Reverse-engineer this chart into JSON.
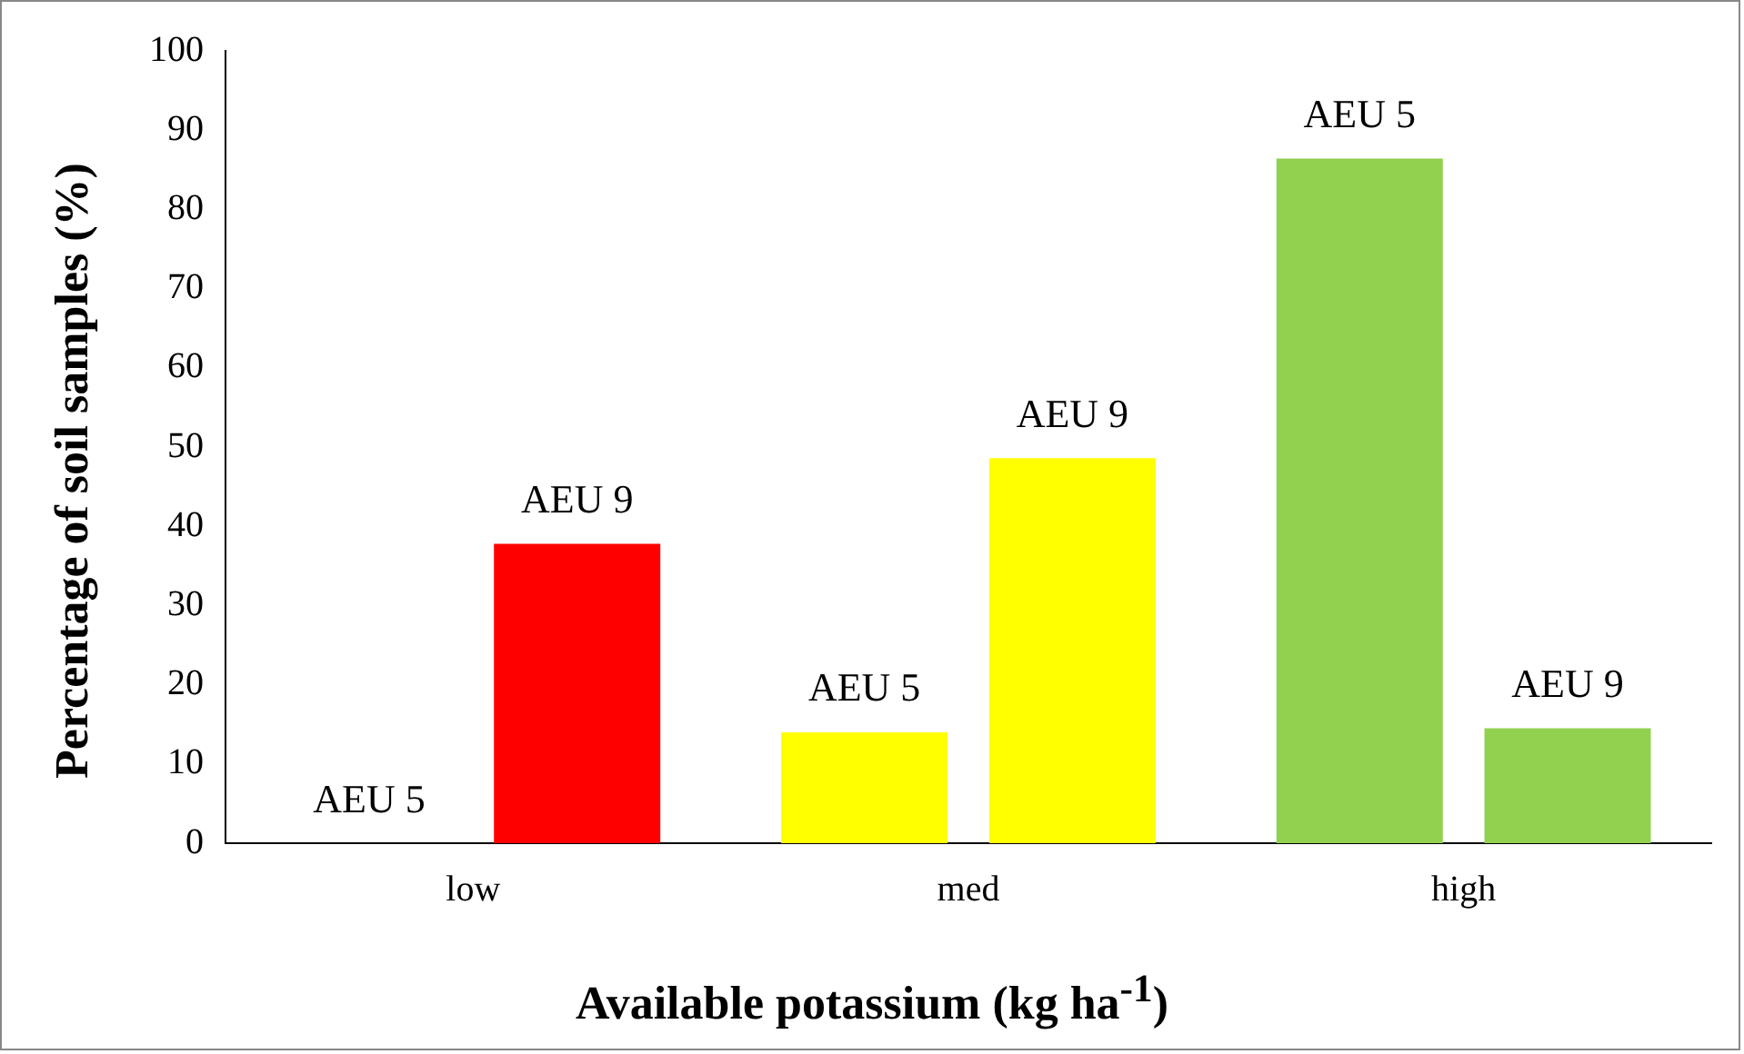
{
  "chart_data": {
    "type": "bar",
    "xlabel": "Available potassium (kg ha$^{-1}$)",
    "ylabel": "Percentage of soil samples (%)",
    "categories": [
      "low",
      "med",
      "high"
    ],
    "series": [
      {
        "name": "AEU 5",
        "colors": [
          "#ff0000",
          "#ffff00",
          "#92d050"
        ],
        "values": [
          0,
          14,
          86.4
        ]
      },
      {
        "name": "AEU 9",
        "colors": [
          "#ff0000",
          "#ffff00",
          "#92d050"
        ],
        "values": [
          37.8,
          48.6,
          14.5
        ]
      }
    ],
    "ylim": [
      0,
      100
    ],
    "yticks": [
      0,
      10,
      20,
      30,
      40,
      50,
      60,
      70,
      80,
      90,
      100
    ],
    "grid": false,
    "legend": false
  }
}
